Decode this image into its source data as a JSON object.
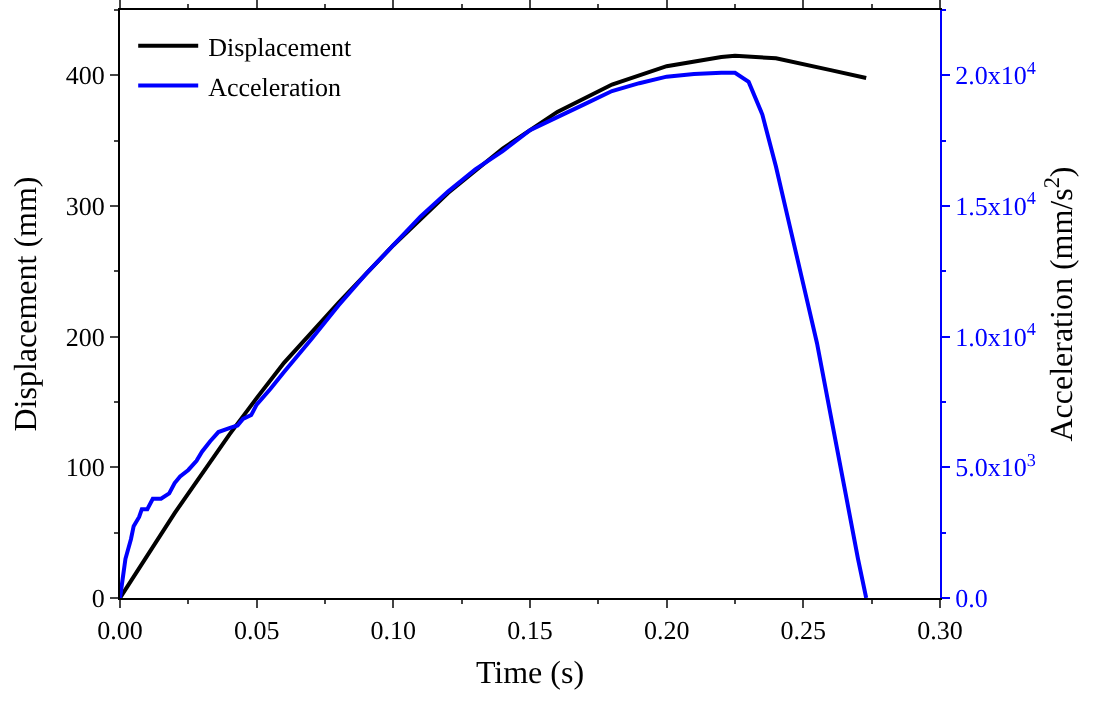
{
  "chart_data": {
    "type": "line",
    "xlabel": "Time (s)",
    "ylabel": "Displacement (mm)",
    "y2label": "Acceleration (mm/s$^{2}$)",
    "xlim": [
      0,
      0.3
    ],
    "xticks": [
      {
        "value": 0,
        "label": "0.00"
      },
      {
        "value": 0.05,
        "label": "0.05"
      },
      {
        "value": 0.1,
        "label": "0.10"
      },
      {
        "value": 0.15,
        "label": "0.15"
      },
      {
        "value": 0.2,
        "label": "0.20"
      },
      {
        "value": 0.25,
        "label": "0.25"
      },
      {
        "value": 0.3,
        "label": "0.30"
      }
    ],
    "ylim": [
      0,
      450
    ],
    "yticks": [
      0,
      100,
      200,
      300,
      400
    ],
    "y2lim": [
      0,
      22500
    ],
    "y2ticks": [
      {
        "value": 0,
        "label": "0.0"
      },
      {
        "value": 5000,
        "label": "5.0x10$^{3}$"
      },
      {
        "value": 10000,
        "label": "1.0x10$^{4}$"
      },
      {
        "value": 15000,
        "label": "1.5x10$^{4}$"
      },
      {
        "value": 20000,
        "label": "2.0x10$^{4}$"
      }
    ],
    "grid": false,
    "legend": "top left",
    "line_style": "solid",
    "marker": "none",
    "series": [
      {
        "name": "Displacement",
        "color": "#000000",
        "x": [
          0,
          0.02,
          0.04,
          0.05,
          0.06,
          0.08,
          0.1,
          0.12,
          0.14,
          0.16,
          0.18,
          0.2,
          0.22,
          0.225,
          0.24,
          0.26,
          0.273
        ],
        "values": [
          0,
          65,
          125,
          153,
          180,
          226,
          270,
          310,
          344,
          372,
          393,
          407,
          414,
          415,
          413,
          404,
          398
        ]
      },
      {
        "name": "Acceleration",
        "color": "#0000ff",
        "axis": "y2",
        "x": [
          0,
          0.001,
          0.002,
          0.004,
          0.005,
          0.007,
          0.008,
          0.01,
          0.012,
          0.015,
          0.018,
          0.02,
          0.022,
          0.025,
          0.028,
          0.03,
          0.033,
          0.036,
          0.04,
          0.043,
          0.045,
          0.048,
          0.05,
          0.055,
          0.06,
          0.07,
          0.08,
          0.09,
          0.1,
          0.11,
          0.12,
          0.13,
          0.14,
          0.15,
          0.16,
          0.17,
          0.18,
          0.19,
          0.2,
          0.21,
          0.22,
          0.225,
          0.23,
          0.235,
          0.24,
          0.245,
          0.25,
          0.255,
          0.26,
          0.265,
          0.27,
          0.273
        ],
        "values": [
          0,
          750,
          1500,
          2250,
          2750,
          3100,
          3400,
          3400,
          3800,
          3800,
          4000,
          4400,
          4650,
          4900,
          5250,
          5600,
          6000,
          6350,
          6500,
          6600,
          6850,
          7000,
          7400,
          8000,
          8650,
          9900,
          11200,
          12400,
          13500,
          14600,
          15550,
          16400,
          17100,
          17900,
          18400,
          18900,
          19400,
          19700,
          19950,
          20050,
          20100,
          20100,
          19750,
          18500,
          16500,
          14250,
          12000,
          9750,
          7000,
          4250,
          1500,
          0
        ]
      }
    ]
  }
}
